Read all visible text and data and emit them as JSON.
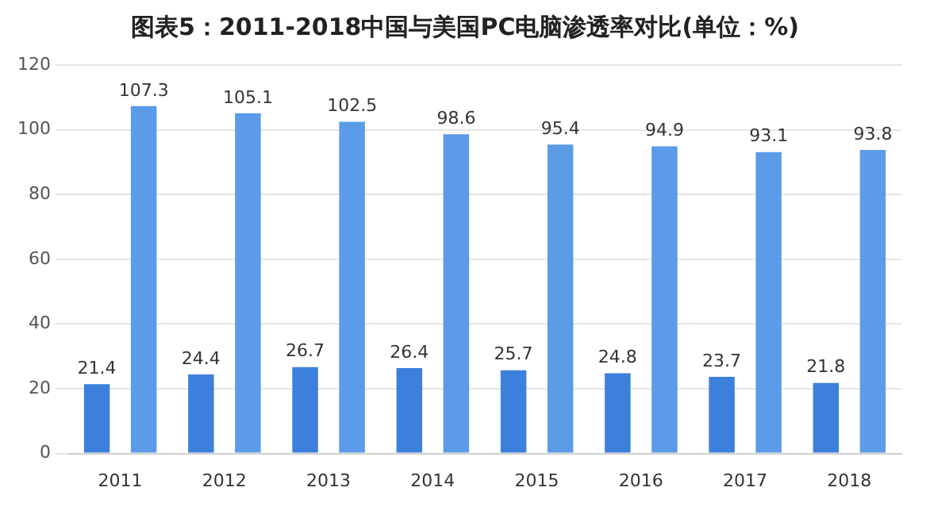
{
  "chart_data": {
    "type": "bar",
    "title": "图表5：2011-2018中国与美国PC电脑渗透率对比(单位：%)",
    "categories": [
      "2011",
      "2012",
      "2013",
      "2014",
      "2015",
      "2016",
      "2017",
      "2018"
    ],
    "series": [
      {
        "color": "#3d80dc",
        "values": [
          21.4,
          24.4,
          26.7,
          26.4,
          25.7,
          24.8,
          23.7,
          21.8
        ]
      },
      {
        "color": "#5b9be8",
        "values": [
          107.3,
          105.1,
          102.5,
          98.6,
          95.4,
          94.9,
          93.1,
          93.8
        ]
      }
    ],
    "ylim": [
      0,
      120
    ],
    "yticks": [
      0,
      20,
      40,
      60,
      80,
      100,
      120
    ],
    "grid": "y",
    "legend": false,
    "data_labels": true
  }
}
